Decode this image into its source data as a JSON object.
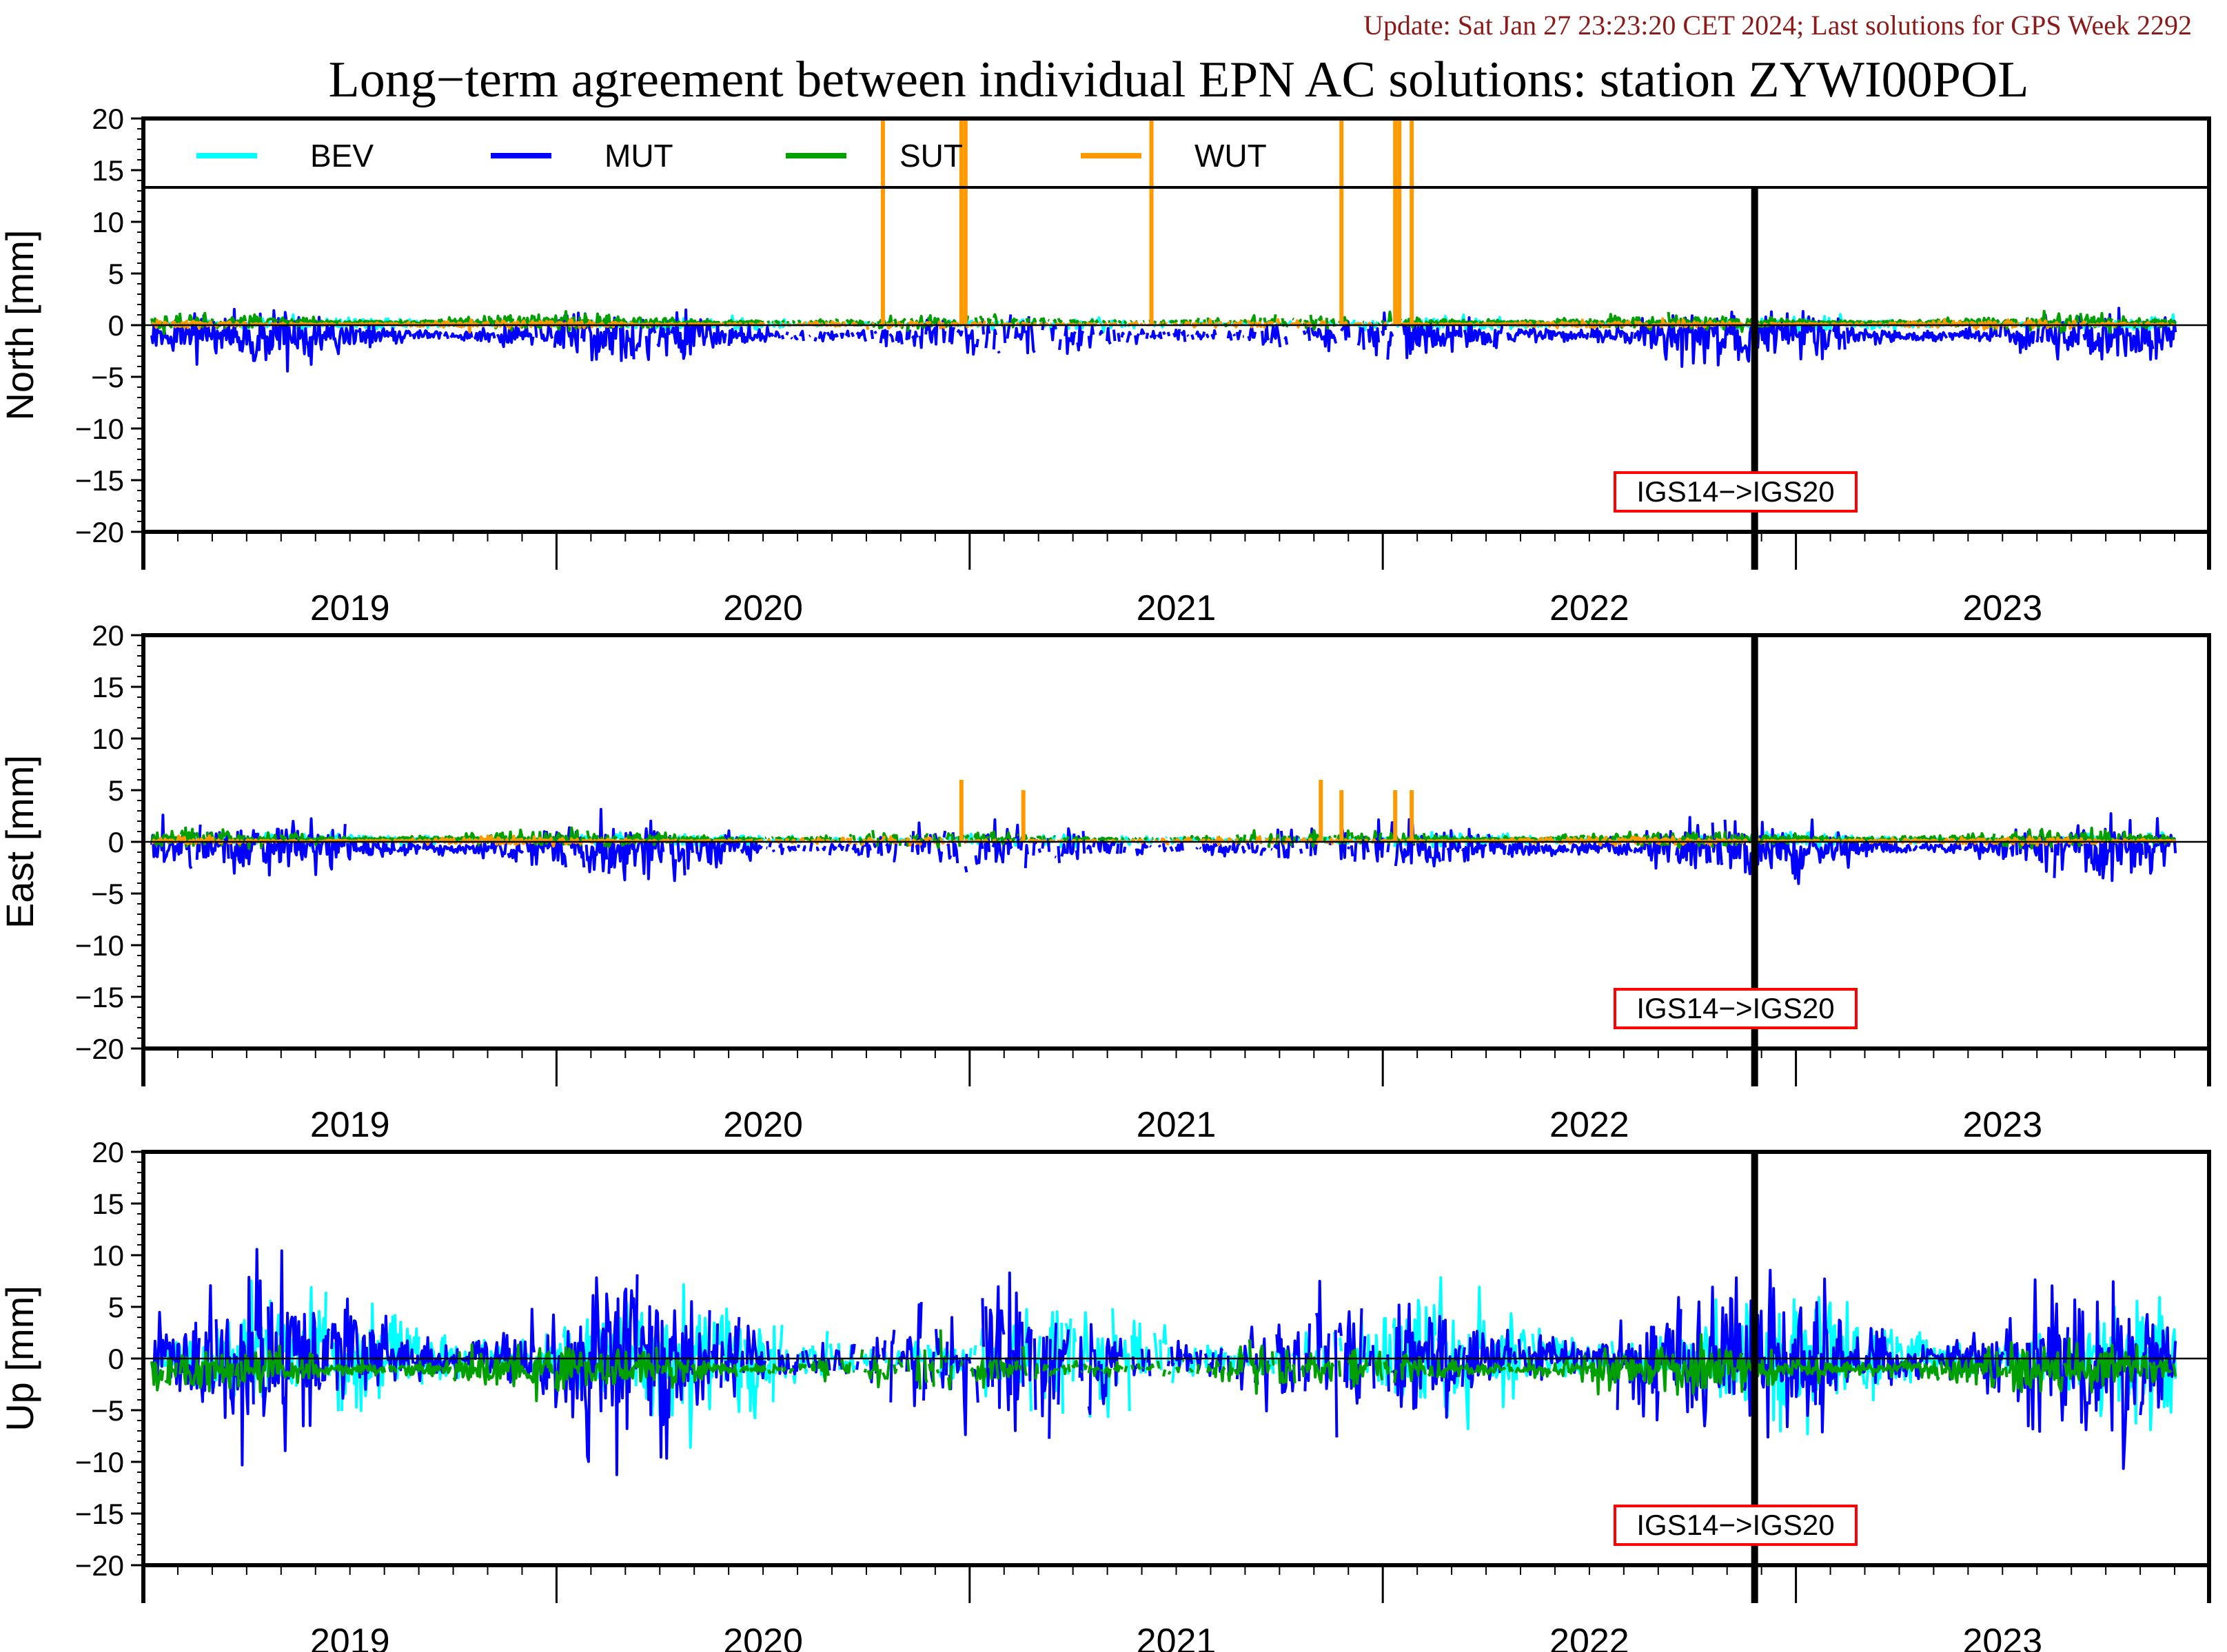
{
  "header": {
    "update_text": "Update: Sat Jan 27 23:23:20 CET 2024; Last solutions for GPS Week 2292",
    "title": "Long−term agreement between individual EPN AC solutions: station ZYWI00POL"
  },
  "colors": {
    "BEV": "#00ffff",
    "MUT": "#0000ff",
    "SUT": "#00a000",
    "WUT": "#ff9900",
    "update_text": "#8b1a1a",
    "note_border": "#ff0000"
  },
  "chart_data": {
    "type": "line",
    "x_range": [
      2018.5,
      2023.5
    ],
    "y_range": [
      -20,
      20
    ],
    "y_ticks": [
      "20",
      "15",
      "10",
      "5",
      "0",
      "−5",
      "−10",
      "−15",
      "−20"
    ],
    "x_ticks": [
      "2019",
      "2020",
      "2021",
      "2022",
      "2023"
    ],
    "legend": [
      "BEV",
      "MUT",
      "SUT",
      "WUT"
    ],
    "reference_change": {
      "date": 2022.4,
      "label": "IGS14−>IGS20"
    },
    "panels": [
      {
        "ylabel": "North [mm]",
        "series": [
          {
            "name": "BEV",
            "noise": 0.35,
            "bias": 0.1
          },
          {
            "name": "MUT",
            "noise": 1.2,
            "bias": -1.0
          },
          {
            "name": "SUT",
            "noise": 0.4,
            "bias": 0.3
          },
          {
            "name": "WUT",
            "noise": 0.2,
            "bias": 0.1
          }
        ],
        "spikes": [
          {
            "series": "WUT",
            "x": 2020.29,
            "y": 20
          },
          {
            "series": "WUT",
            "x": 2020.48,
            "y": 20
          },
          {
            "series": "WUT",
            "x": 2020.49,
            "y": 20
          },
          {
            "series": "WUT",
            "x": 2020.94,
            "y": 20
          },
          {
            "series": "WUT",
            "x": 2021.4,
            "y": 20
          },
          {
            "series": "WUT",
            "x": 2021.53,
            "y": 20
          },
          {
            "series": "WUT",
            "x": 2021.54,
            "y": 20
          },
          {
            "series": "WUT",
            "x": 2021.57,
            "y": 20
          }
        ]
      },
      {
        "ylabel": "East [mm]",
        "series": [
          {
            "name": "BEV",
            "noise": 0.35,
            "bias": 0.2
          },
          {
            "name": "MUT",
            "noise": 1.3,
            "bias": -0.6
          },
          {
            "name": "SUT",
            "noise": 0.4,
            "bias": 0.3
          },
          {
            "name": "WUT",
            "noise": 0.2,
            "bias": 0.1
          }
        ],
        "spikes": [
          {
            "series": "WUT",
            "x": 2020.48,
            "y": 6
          },
          {
            "series": "WUT",
            "x": 2020.63,
            "y": 5
          },
          {
            "series": "WUT",
            "x": 2021.35,
            "y": 6
          },
          {
            "series": "WUT",
            "x": 2021.4,
            "y": 5
          },
          {
            "series": "WUT",
            "x": 2021.53,
            "y": 5
          },
          {
            "series": "WUT",
            "x": 2021.57,
            "y": 5
          }
        ]
      },
      {
        "ylabel": "Up [mm]",
        "series": [
          {
            "name": "BEV",
            "noise": 3.0,
            "bias": 0.0
          },
          {
            "name": "MUT",
            "noise": 3.8,
            "bias": 0.0
          },
          {
            "name": "SUT",
            "noise": 1.2,
            "bias": -1.0
          }
        ],
        "spikes": []
      }
    ]
  }
}
